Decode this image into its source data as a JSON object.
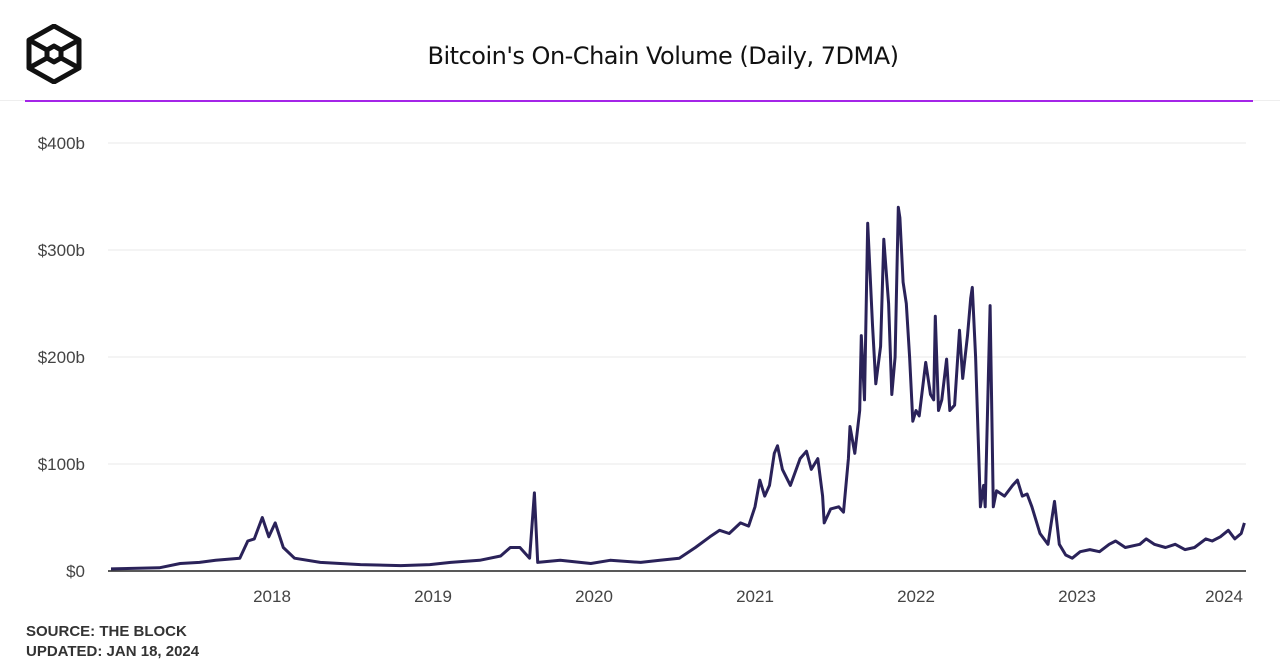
{
  "logo": "The Block",
  "chart_data": {
    "type": "line",
    "title": "Bitcoin's On-Chain Volume (Daily, 7DMA)",
    "xlabel": "",
    "ylabel": "",
    "ylim": [
      0,
      400
    ],
    "xlim": [
      2017.0,
      2024.05
    ],
    "grid": true,
    "y_ticks": [
      0,
      100,
      200,
      300,
      400
    ],
    "y_tick_labels": [
      "$0",
      "$100b",
      "$200b",
      "$300b",
      "$400b"
    ],
    "x_ticks": [
      2018,
      2019,
      2020,
      2021,
      2022,
      2023,
      2024
    ],
    "x_tick_labels": [
      "2018",
      "2019",
      "2020",
      "2021",
      "2022",
      "2023",
      "2024"
    ],
    "line_color": "#2a2259",
    "accent_color": "#a425e8",
    "series": [
      {
        "x": [
          2017.0,
          2017.3,
          2017.43,
          2017.55,
          2017.65,
          2017.8,
          2017.85,
          2017.89,
          2017.94,
          2017.98,
          2018.02,
          2018.07,
          2018.14,
          2018.3,
          2018.55,
          2018.8,
          2018.98,
          2019.11,
          2019.29,
          2019.42,
          2019.48,
          2019.54,
          2019.6,
          2019.63,
          2019.65,
          2019.79,
          2019.98,
          2020.1,
          2020.29,
          2020.41,
          2020.53,
          2020.63,
          2020.72,
          2020.78,
          2020.84,
          2020.91,
          2020.96,
          2021.0,
          2021.03,
          2021.06,
          2021.09,
          2021.12,
          2021.14,
          2021.17,
          2021.22,
          2021.28,
          2021.32,
          2021.35,
          2021.39,
          2021.42,
          2021.43,
          2021.47,
          2021.52,
          2021.55,
          2021.58,
          2021.59,
          2021.62,
          2021.65,
          2021.66,
          2021.68,
          2021.7,
          2021.73,
          2021.75,
          2021.78,
          2021.8,
          2021.83,
          2021.85,
          2021.87,
          2021.89,
          2021.9,
          2021.92,
          2021.94,
          2021.96,
          2021.98,
          2022.0,
          2022.02,
          2022.06,
          2022.09,
          2022.11,
          2022.12,
          2022.14,
          2022.16,
          2022.19,
          2022.21,
          2022.24,
          2022.27,
          2022.29,
          2022.32,
          2022.34,
          2022.35,
          2022.37,
          2022.4,
          2022.42,
          2022.43,
          2022.46,
          2022.48,
          2022.5,
          2022.55,
          2022.6,
          2022.63,
          2022.66,
          2022.69,
          2022.72,
          2022.77,
          2022.82,
          2022.86,
          2022.89,
          2022.93,
          2022.97,
          2023.02,
          2023.08,
          2023.14,
          2023.2,
          2023.24,
          2023.3,
          2023.39,
          2023.43,
          2023.48,
          2023.55,
          2023.61,
          2023.67,
          2023.73,
          2023.8,
          2023.84,
          2023.89,
          2023.94,
          2023.98,
          2024.02,
          2024.04
        ],
        "y": [
          2,
          3,
          7,
          8,
          10,
          12,
          28,
          30,
          50,
          32,
          45,
          22,
          12,
          8,
          6,
          5,
          6,
          8,
          10,
          14,
          22,
          22,
          12,
          73,
          8,
          10,
          7,
          10,
          8,
          10,
          12,
          22,
          32,
          38,
          35,
          45,
          42,
          60,
          85,
          70,
          80,
          110,
          117,
          95,
          80,
          105,
          112,
          95,
          105,
          70,
          45,
          58,
          60,
          55,
          105,
          135,
          110,
          150,
          220,
          160,
          325,
          230,
          175,
          210,
          310,
          250,
          165,
          200,
          340,
          330,
          270,
          250,
          200,
          140,
          150,
          145,
          195,
          165,
          160,
          238,
          150,
          160,
          198,
          150,
          155,
          225,
          180,
          220,
          255,
          265,
          200,
          60,
          80,
          60,
          248,
          60,
          75,
          70,
          80,
          85,
          70,
          72,
          60,
          35,
          25,
          65,
          25,
          15,
          12,
          18,
          20,
          18,
          25,
          28,
          22,
          25,
          30,
          25,
          22,
          25,
          20,
          22,
          30,
          28,
          32,
          38,
          30,
          35,
          45
        ]
      }
    ]
  },
  "footer": {
    "source": "SOURCE: THE BLOCK",
    "updated": "UPDATED: JAN 18, 2024"
  }
}
